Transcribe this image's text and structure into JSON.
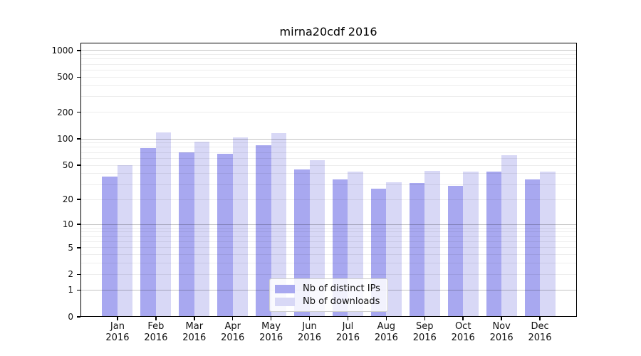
{
  "chart_data": {
    "type": "bar",
    "title": "mirna20cdf 2016",
    "categories": [
      "Jan",
      "Feb",
      "Mar",
      "Apr",
      "May",
      "Jun",
      "Jul",
      "Aug",
      "Sep",
      "Oct",
      "Nov",
      "Dec"
    ],
    "x_year_label": "2016",
    "series": [
      {
        "name": "Nb of distinct IPs",
        "color": "#a8a8f0",
        "values": [
          37,
          79,
          70,
          68,
          85,
          45,
          34,
          27,
          31,
          29,
          42,
          34
        ]
      },
      {
        "name": "Nb of downloads",
        "color": "#d8d8f6",
        "values": [
          50,
          118,
          93,
          104,
          116,
          57,
          42,
          32,
          43,
          42,
          65,
          42
        ]
      }
    ],
    "yscale": "log1p",
    "ylim": [
      0,
      1220
    ],
    "yticks": [
      1000,
      500,
      200,
      100,
      50,
      20,
      10,
      5,
      2,
      1,
      0
    ],
    "grid": {
      "on": true,
      "major_lines": [
        1,
        10,
        100,
        1000
      ],
      "minor_decades": [
        1,
        10,
        100
      ]
    },
    "legend": {
      "position": "lower center"
    },
    "colors": {
      "axis": "#000000",
      "tick_text": "#111111",
      "background": "#ffffff"
    }
  }
}
